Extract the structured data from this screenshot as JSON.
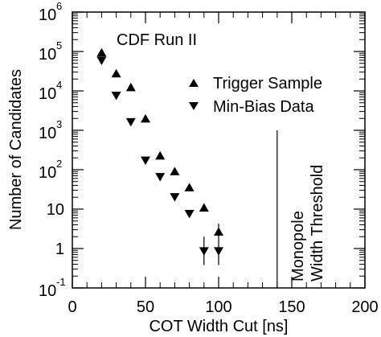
{
  "chart_data": {
    "type": "scatter",
    "xlabel": "COT Width Cut [ns]",
    "ylabel": "Number of Candidates",
    "xlim": [
      0,
      200
    ],
    "ylim": [
      0.1,
      1000000
    ],
    "yscale": "log",
    "grid": false,
    "legend_position": "right",
    "x_ticks": [
      {
        "value": 0,
        "label": "0"
      },
      {
        "value": 50,
        "label": "50"
      },
      {
        "value": 100,
        "label": "100"
      },
      {
        "value": 150,
        "label": "150"
      },
      {
        "value": 200,
        "label": "200"
      }
    ],
    "y_ticks": [
      {
        "value": 0.1,
        "base": "10",
        "exp": "-1"
      },
      {
        "value": 1,
        "base": "1",
        "exp": ""
      },
      {
        "value": 10,
        "base": "10",
        "exp": ""
      },
      {
        "value": 100,
        "base": "10",
        "exp": "2"
      },
      {
        "value": 1000,
        "base": "10",
        "exp": "3"
      },
      {
        "value": 10000,
        "base": "10",
        "exp": "4"
      },
      {
        "value": 100000,
        "base": "10",
        "exp": "5"
      },
      {
        "value": 1000000,
        "base": "10",
        "exp": "6"
      }
    ],
    "series": [
      {
        "name": "Trigger Sample",
        "marker": "triangle-up",
        "color": "#000000",
        "points": [
          {
            "x": 20,
            "y": 95000
          },
          {
            "x": 30,
            "y": 28000
          },
          {
            "x": 40,
            "y": 12500
          },
          {
            "x": 50,
            "y": 2000
          },
          {
            "x": 60,
            "y": 230
          },
          {
            "x": 70,
            "y": 92
          },
          {
            "x": 80,
            "y": 36
          },
          {
            "x": 90,
            "y": 11
          },
          {
            "x": 100,
            "y": 2.7
          }
        ]
      },
      {
        "name": "Min-Bias Data",
        "marker": "triangle-down",
        "color": "#000000",
        "points": [
          {
            "x": 20,
            "y": 58000
          },
          {
            "x": 30,
            "y": 7500
          },
          {
            "x": 40,
            "y": 1600
          },
          {
            "x": 50,
            "y": 170
          },
          {
            "x": 60,
            "y": 65
          },
          {
            "x": 70,
            "y": 20
          },
          {
            "x": 80,
            "y": 7.5
          },
          {
            "x": 90,
            "y": 0.85
          },
          {
            "x": 100,
            "y": 0.85
          }
        ]
      }
    ],
    "error_bars": [
      {
        "x": 90,
        "y_low": 0.38,
        "y_high": 2.0
      },
      {
        "x": 100,
        "y_low": 0.38,
        "y_high": 4.3
      }
    ],
    "annotations": {
      "run_label": "CDF Run II",
      "threshold_label_line1": "Monopole",
      "threshold_label_line2": "Width Threshold",
      "threshold_x": 140,
      "threshold_y_top": 1000
    }
  }
}
